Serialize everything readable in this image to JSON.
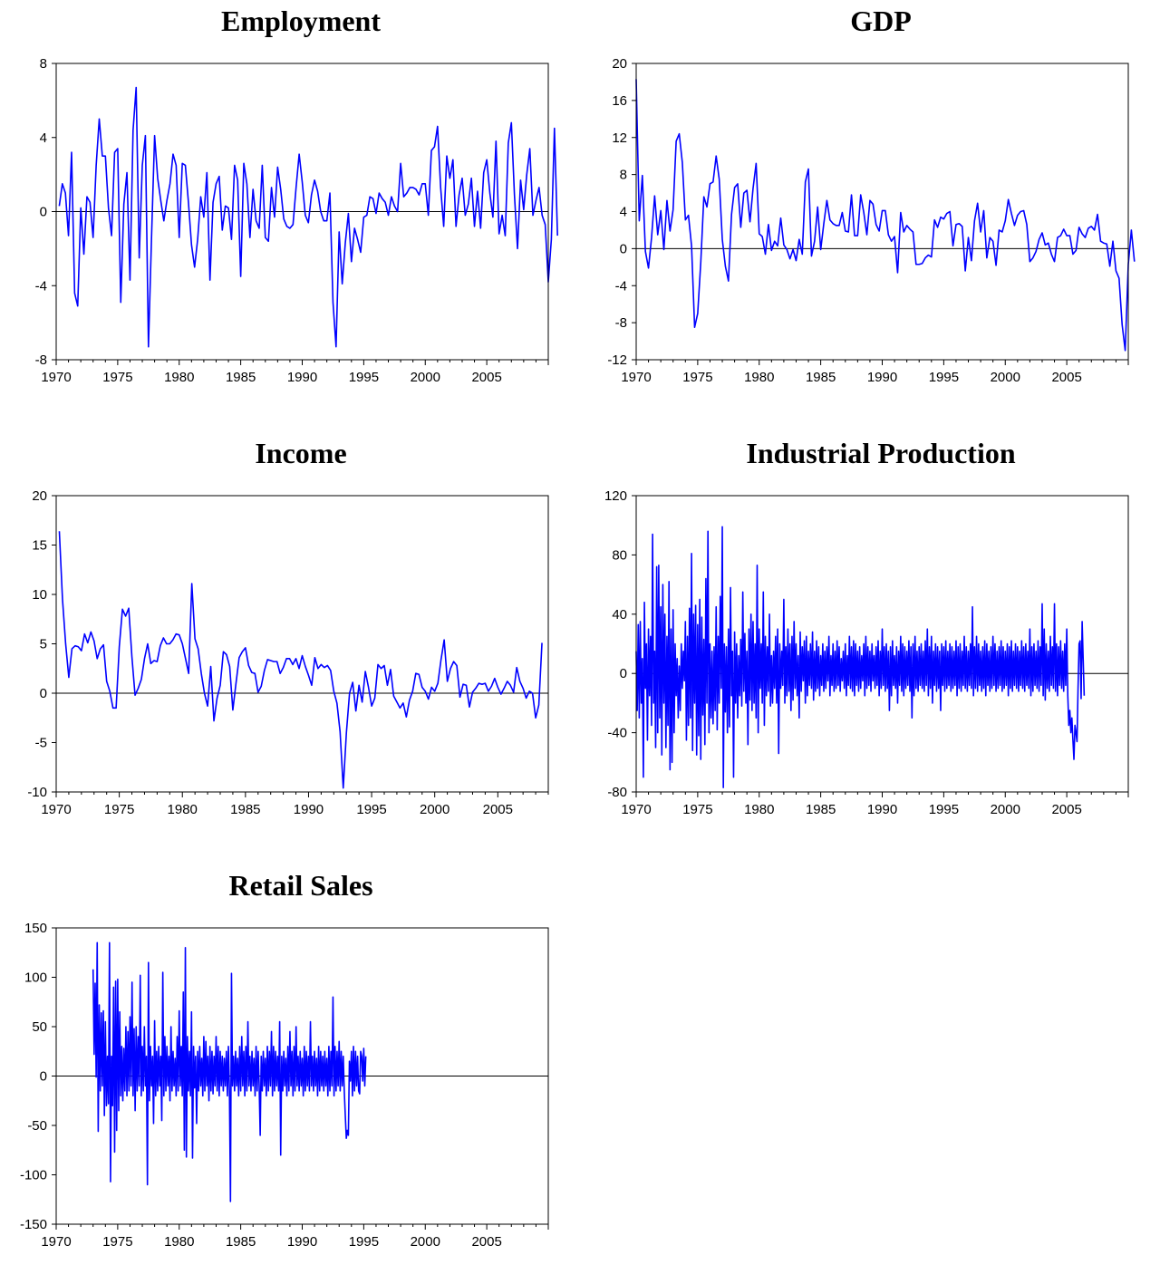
{
  "chart_data": [
    {
      "type": "line",
      "title": "Employment",
      "xlim": [
        1970,
        2010
      ],
      "ylim": [
        -8,
        8
      ],
      "yticks": [
        "8",
        "4",
        "0",
        "-4",
        "-8"
      ],
      "xticks": [
        "1970",
        "1975",
        "1980",
        "1985",
        "1990",
        "1995",
        "2000",
        "2005"
      ],
      "frequency": "quarterly",
      "start": 1970.25,
      "values": [
        0.3,
        1.5,
        1.0,
        -1.3,
        3.2,
        -4.4,
        -5.1,
        0.2,
        -2.3,
        0.8,
        0.5,
        -1.4,
        2.5,
        5.0,
        3.0,
        3.0,
        0.2,
        -1.3,
        3.2,
        3.4,
        -4.9,
        0.4,
        2.1,
        -3.7,
        4.4,
        6.7,
        -2.5,
        2.5,
        4.1,
        -7.3,
        -1.4,
        4.1,
        1.8,
        0.6,
        -0.5,
        0.6,
        1.5,
        3.1,
        2.5,
        -1.4,
        2.6,
        2.5,
        0.5,
        -1.8,
        -3.0,
        -1.5,
        0.8,
        -0.3,
        2.1,
        -3.7,
        0.5,
        1.5,
        1.9,
        -1.0,
        0.3,
        0.2,
        -1.5,
        2.5,
        1.7,
        -3.5,
        2.6,
        1.5,
        -1.4,
        1.2,
        -0.5,
        -0.9,
        2.5,
        -1.4,
        -1.6,
        1.3,
        -0.3,
        2.4,
        1.2,
        -0.4,
        -0.8,
        -0.9,
        -0.7,
        1.3,
        3.1,
        1.6,
        -0.2,
        -0.6,
        0.9,
        1.7,
        1.1,
        0.0,
        -0.5,
        -0.5,
        1.0,
        -4.9,
        -7.3,
        -1.1,
        -3.9,
        -1.7,
        -0.1,
        -2.7,
        -0.9,
        -1.5,
        -2.2,
        -0.3,
        -0.2,
        0.8,
        0.7,
        -0.1,
        1.0,
        0.7,
        0.5,
        -0.2,
        0.8,
        0.3,
        0.0,
        2.6,
        0.8,
        1.0,
        1.3,
        1.3,
        1.2,
        0.9,
        1.5,
        1.5,
        -0.2,
        3.3,
        3.5,
        4.6,
        1.3,
        -0.8,
        3.0,
        1.8,
        2.8,
        -0.8,
        0.9,
        1.8,
        -0.2,
        0.4,
        1.8,
        -0.8,
        1.1,
        -0.9,
        2.1,
        2.8,
        1.0,
        -0.3,
        3.8,
        -1.2,
        -0.2,
        -1.3,
        3.7,
        4.8,
        0.9,
        -2.0,
        1.7,
        0.1,
        2.0,
        3.4,
        -0.2,
        0.6,
        1.3,
        -0.2,
        -0.7,
        -3.8,
        -1.5,
        4.5,
        -1.3
      ]
    },
    {
      "type": "line",
      "title": "GDP",
      "xlim": [
        1970,
        2010
      ],
      "ylim": [
        -12,
        20
      ],
      "yticks": [
        "20",
        "16",
        "12",
        "8",
        "4",
        "0",
        "-4",
        "-8",
        "-12"
      ],
      "xticks": [
        "1970",
        "1975",
        "1980",
        "1985",
        "1990",
        "1995",
        "2000",
        "2005"
      ],
      "frequency": "quarterly",
      "start": 1970.0,
      "values": [
        18.3,
        3.0,
        7.9,
        -0.3,
        -2.1,
        1.2,
        5.7,
        1.5,
        4.1,
        -0.1,
        5.2,
        1.9,
        4.2,
        11.6,
        12.4,
        9.3,
        3.1,
        3.6,
        0.3,
        -8.5,
        -7.0,
        -1.5,
        5.6,
        4.5,
        7.0,
        7.2,
        10.0,
        7.5,
        1.0,
        -1.9,
        -3.5,
        3.7,
        6.6,
        7.0,
        2.3,
        6.0,
        6.3,
        2.9,
        6.5,
        9.2,
        1.6,
        1.3,
        -0.6,
        2.6,
        -0.2,
        0.8,
        0.3,
        3.3,
        0.4,
        -0.1,
        -1.1,
        -0.1,
        -1.3,
        1.0,
        -0.6,
        7.2,
        8.6,
        -0.8,
        0.8,
        4.5,
        -0.1,
        2.7,
        5.2,
        3.1,
        2.7,
        2.5,
        2.5,
        3.9,
        1.9,
        1.8,
        5.8,
        1.4,
        1.4,
        5.8,
        3.9,
        1.5,
        5.2,
        4.8,
        2.6,
        1.9,
        4.1,
        4.1,
        1.5,
        0.8,
        1.3,
        -2.6,
        3.9,
        1.8,
        2.5,
        2.1,
        1.8,
        -1.7,
        -1.7,
        -1.6,
        -1.0,
        -0.7,
        -0.9,
        3.1,
        2.3,
        3.4,
        3.2,
        3.8,
        4.0,
        0.3,
        2.6,
        2.7,
        2.4,
        -2.4,
        1.2,
        -1.3,
        3.0,
        4.9,
        1.8,
        4.1,
        -1.0,
        1.2,
        0.8,
        -1.8,
        2.0,
        1.8,
        3.0,
        5.3,
        3.8,
        2.5,
        3.6,
        4.0,
        4.1,
        2.6,
        -1.4,
        -1.0,
        -0.3,
        1.0,
        1.7,
        0.4,
        0.6,
        -0.6,
        -1.4,
        1.2,
        1.4,
        2.1,
        1.4,
        1.4,
        -0.6,
        -0.2,
        2.3,
        1.6,
        1.2,
        2.2,
        2.4,
        2.0,
        3.7,
        0.8,
        0.6,
        0.5,
        -1.9,
        0.8,
        -2.4,
        -3.2,
        -8.2,
        -11.0,
        -1.7,
        2.0,
        -1.4
      ]
    },
    {
      "type": "line",
      "title": "Income",
      "xlim": [
        1970,
        2009
      ],
      "ylim": [
        -10,
        20
      ],
      "yticks": [
        "20",
        "15",
        "10",
        "5",
        "0",
        "-5",
        "-10"
      ],
      "xticks": [
        "1970",
        "1975",
        "1980",
        "1985",
        "1990",
        "1995",
        "2000",
        "2005"
      ],
      "frequency": "quarterly",
      "start": 1970.25,
      "values": [
        16.4,
        9.5,
        5.0,
        1.6,
        4.5,
        4.8,
        4.7,
        4.3,
        6.0,
        5.1,
        6.2,
        5.3,
        3.5,
        4.5,
        4.9,
        1.2,
        0.2,
        -1.5,
        -1.5,
        4.7,
        8.5,
        7.8,
        8.6,
        3.7,
        -0.2,
        0.5,
        1.4,
        3.5,
        5.0,
        3.0,
        3.3,
        3.2,
        4.8,
        5.6,
        5.0,
        5.0,
        5.4,
        6.0,
        5.9,
        5.0,
        3.5,
        2.0,
        11.1,
        5.5,
        4.5,
        2.0,
        0.0,
        -1.3,
        2.7,
        -2.8,
        -0.5,
        0.8,
        4.2,
        3.9,
        2.7,
        -1.7,
        1.0,
        3.6,
        4.2,
        4.6,
        2.8,
        2.1,
        2.0,
        0.1,
        0.7,
        2.3,
        3.4,
        3.3,
        3.2,
        3.2,
        2.0,
        2.6,
        3.5,
        3.5,
        2.9,
        3.5,
        2.5,
        3.8,
        2.7,
        1.8,
        0.8,
        3.6,
        2.5,
        2.9,
        2.6,
        2.8,
        2.3,
        0.2,
        -1.0,
        -3.9,
        -9.6,
        -4.0,
        0.0,
        1.1,
        -1.8,
        0.8,
        -0.9,
        2.2,
        0.6,
        -1.3,
        -0.5,
        2.9,
        2.5,
        2.8,
        0.8,
        2.4,
        -0.3,
        -0.9,
        -1.5,
        -1.0,
        -2.4,
        -0.7,
        0.2,
        2.0,
        1.9,
        0.6,
        0.2,
        -0.6,
        0.6,
        0.2,
        1.0,
        3.4,
        5.4,
        1.2,
        2.5,
        3.2,
        2.8,
        -0.4,
        0.9,
        0.8,
        -1.4,
        0.1,
        0.5,
        1.0,
        0.9,
        1.0,
        0.2,
        0.7,
        1.5,
        0.6,
        -0.1,
        0.5,
        1.2,
        0.8,
        0.1,
        2.6,
        1.2,
        0.5,
        -0.5,
        0.2,
        0.0,
        -2.5,
        -1.2,
        5.1
      ]
    },
    {
      "type": "line",
      "title": "Industrial Production",
      "xlim": [
        1970,
        2010
      ],
      "ylim": [
        -80,
        120
      ],
      "yticks": [
        "120",
        "80",
        "40",
        "0",
        "-40",
        "-80"
      ],
      "xticks": [
        "1970",
        "1975",
        "1980",
        "1985",
        "1990",
        "1995",
        "2000",
        "2005"
      ],
      "frequency": "monthly",
      "start": 1970.0,
      "values": [
        15,
        -25,
        33,
        -30,
        35,
        -20,
        10,
        -70,
        48,
        -10,
        20,
        -45,
        30,
        -15,
        25,
        -35,
        94,
        -20,
        15,
        -50,
        72,
        -40,
        73,
        -30,
        45,
        -55,
        60,
        -20,
        40,
        -50,
        25,
        -35,
        62,
        -65,
        30,
        -60,
        43,
        -40,
        20,
        -15,
        10,
        -30,
        5,
        -25,
        20,
        -10,
        15,
        -5,
        35,
        -45,
        25,
        -35,
        44,
        -30,
        81,
        -52,
        40,
        -20,
        46,
        -55,
        33,
        -42,
        50,
        -58,
        38,
        -28,
        23,
        -48,
        64,
        -20,
        96,
        -40,
        20,
        -30,
        15,
        -34,
        18,
        -25,
        45,
        -38,
        25,
        -20,
        52,
        -10,
        99,
        -77,
        20,
        -26,
        18,
        -40,
        30,
        -36,
        58,
        -15,
        15,
        -70,
        28,
        -20,
        20,
        -30,
        12,
        -15,
        23,
        -22,
        55,
        -12,
        27,
        -20,
        15,
        -48,
        30,
        -18,
        40,
        -25,
        35,
        -20,
        20,
        -30,
        73,
        -40,
        30,
        -10,
        20,
        -20,
        55,
        -35,
        25,
        -15,
        18,
        -12,
        40,
        -22,
        12,
        -20,
        15,
        -10,
        25,
        -20,
        30,
        -54,
        20,
        -10,
        15,
        -8,
        50,
        -20,
        18,
        -15,
        30,
        -12,
        20,
        -25,
        25,
        -18,
        35,
        -10,
        20,
        -15,
        12,
        -30,
        28,
        -12,
        18,
        -5,
        22,
        -20,
        25,
        -15,
        15,
        -8,
        20,
        -10,
        28,
        -18,
        15,
        -12,
        22,
        -10,
        18,
        -15,
        12,
        -8,
        20,
        -12,
        15,
        -10,
        18,
        -5,
        25,
        -15,
        12,
        -8,
        20,
        -12,
        15,
        -10,
        22,
        -8,
        18,
        -12,
        10,
        -5,
        15,
        -10,
        20,
        -15,
        12,
        -8,
        25,
        -10,
        18,
        -12,
        22,
        -15,
        20,
        -8,
        15,
        -12,
        18,
        -10,
        12,
        -5,
        20,
        -15,
        25,
        -10,
        18,
        -8,
        15,
        -12,
        20,
        -5,
        12,
        -10,
        18,
        -8,
        22,
        -15,
        15,
        -10,
        30,
        -8,
        18,
        -12,
        20,
        -10,
        15,
        -25,
        18,
        -15,
        22,
        -8,
        12,
        -10,
        18,
        -20,
        15,
        -8,
        25,
        -12,
        20,
        -15,
        18,
        -10,
        15,
        -8,
        22,
        -12,
        18,
        -30,
        20,
        -15,
        25,
        -10,
        15,
        -12,
        18,
        -8,
        20,
        -10,
        15,
        -12,
        22,
        -8,
        30,
        -15,
        18,
        -10,
        25,
        -20,
        15,
        -8,
        20,
        -12,
        18,
        -10,
        15,
        -25,
        20,
        -8,
        18,
        -12,
        22,
        -10,
        15,
        -8,
        20,
        -12,
        18,
        -10,
        15,
        -8,
        22,
        -15,
        18,
        -10,
        20,
        -12,
        15,
        -8,
        25,
        -10,
        18,
        -12,
        15,
        -8,
        20,
        -10,
        45,
        -15,
        18,
        -10,
        25,
        -12,
        20,
        -8,
        15,
        -12,
        18,
        -10,
        22,
        -15,
        20,
        -8,
        15,
        -12,
        18,
        -10,
        25,
        -8,
        20,
        -12,
        15,
        -10,
        18,
        -8,
        22,
        -12,
        18,
        -10,
        15,
        -8,
        20,
        -15,
        18,
        -10,
        22,
        -12,
        15,
        -8,
        20,
        -10,
        18,
        -12,
        15,
        -8,
        22,
        -10,
        18,
        -12,
        20,
        -8,
        15,
        -10,
        30,
        -15,
        18,
        -12,
        20,
        -8,
        15,
        -10,
        22,
        -12,
        18,
        -8,
        47,
        -15,
        30,
        -18,
        20,
        -10,
        15,
        -12,
        25,
        -8,
        18,
        -10,
        47,
        -12,
        20,
        -15,
        18,
        -8,
        22,
        -10,
        15,
        -12,
        20,
        -8,
        30,
        -15,
        -35,
        -25,
        -40,
        -30,
        -45,
        -58,
        -35,
        -40,
        -46,
        -10,
        20,
        22,
        -17,
        35,
        10,
        -15
      ]
    },
    {
      "type": "line",
      "title": "Retail Sales",
      "xlim": [
        1970,
        2010
      ],
      "ylim": [
        -150,
        150
      ],
      "yticks": [
        "150",
        "100",
        "50",
        "0",
        "-50",
        "-100",
        "-150"
      ],
      "xticks": [
        "1970",
        "1975",
        "1980",
        "1985",
        "1990",
        "1995",
        "2000",
        "2005"
      ],
      "frequency": "monthly",
      "start": 1973.0,
      "values": [
        108,
        22,
        94,
        -1,
        135,
        -56,
        72,
        -15,
        64,
        -10,
        66,
        -40,
        55,
        -30,
        20,
        -28,
        135,
        -107,
        20,
        -30,
        90,
        -77,
        96,
        -55,
        98,
        -35,
        65,
        -20,
        30,
        -25,
        28,
        -15,
        50,
        -20,
        45,
        -15,
        60,
        -10,
        95,
        -20,
        48,
        -35,
        50,
        -15,
        40,
        -10,
        102,
        -20,
        30,
        -15,
        50,
        -10,
        20,
        -110,
        115,
        -25,
        30,
        -10,
        20,
        -48,
        56,
        -20,
        25,
        -15,
        30,
        -10,
        20,
        -45,
        105,
        -20,
        40,
        -15,
        30,
        -10,
        20,
        -25,
        50,
        -15,
        25,
        -10,
        18,
        -20,
        40,
        -15,
        66,
        -10,
        30,
        -20,
        85,
        -75,
        130,
        -82,
        40,
        -15,
        25,
        -20,
        65,
        -83,
        30,
        -12,
        20,
        -48,
        25,
        -15,
        30,
        -10,
        18,
        -20,
        40,
        -15,
        35,
        -10,
        20,
        -25,
        30,
        -15,
        25,
        -18,
        20,
        -10,
        40,
        -15,
        30,
        -20,
        25,
        -10,
        20,
        -15,
        18,
        -10,
        25,
        -20,
        30,
        -15,
        -127,
        104,
        -10,
        20,
        -15,
        25,
        -10,
        18,
        -20,
        30,
        -15,
        40,
        -10,
        25,
        -20,
        30,
        -15,
        55,
        -10,
        20,
        -15,
        25,
        -10,
        18,
        -20,
        30,
        -15,
        25,
        -10,
        -60,
        20,
        -15,
        25,
        -10,
        18,
        -20,
        30,
        -15,
        25,
        -10,
        45,
        -20,
        30,
        -15,
        25,
        -10,
        20,
        -15,
        55,
        -80,
        20,
        -15,
        25,
        -10,
        18,
        -20,
        30,
        -15,
        45,
        -10,
        25,
        -20,
        30,
        -15,
        50,
        -10,
        20,
        -15,
        25,
        -10,
        18,
        -20,
        30,
        -15,
        25,
        -10,
        20,
        -15,
        55,
        -10,
        20,
        -15,
        25,
        -10,
        18,
        -20,
        30,
        -15,
        25,
        -10,
        20,
        -15,
        25,
        -10,
        18,
        -20,
        30,
        -15,
        25,
        -10,
        80,
        -20,
        30,
        -15,
        25,
        -10,
        35,
        -15,
        25,
        -10,
        20,
        -15,
        -40,
        -63,
        -55,
        -60,
        15,
        -5,
        25,
        -20,
        30,
        -15,
        25,
        -10,
        20,
        -15,
        -18,
        25,
        20,
        -5,
        28,
        -10,
        20
      ]
    }
  ]
}
